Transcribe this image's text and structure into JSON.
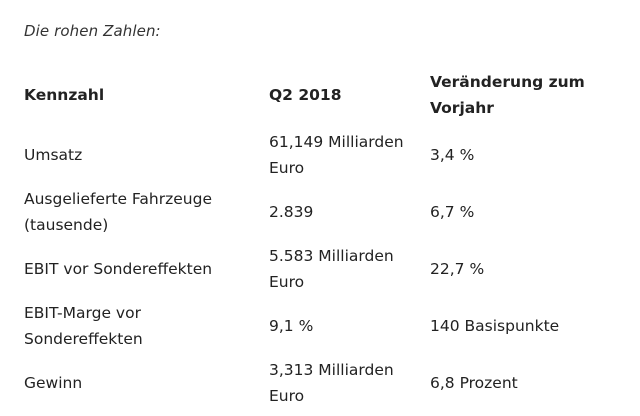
{
  "intro": "Die rohen Zahlen:",
  "table": {
    "headers": [
      "Kennzahl",
      "Q2 2018",
      "Veränderung zum Vorjahr"
    ],
    "rows": [
      [
        "Umsatz",
        "61,149 Milliarden Euro",
        "3,4 %"
      ],
      [
        "Ausgelieferte Fahrzeuge (tausende)",
        "2.839",
        "6,7 %"
      ],
      [
        "EBIT vor Sondereffekten",
        "5.583 Milliarden Euro",
        "22,7 %"
      ],
      [
        "EBIT-Marge vor Sondereffekten",
        "9,1 %",
        "140 Basispunkte"
      ],
      [
        "Gewinn",
        "3,313 Milliarden Euro",
        "6,8 Prozent"
      ]
    ]
  }
}
